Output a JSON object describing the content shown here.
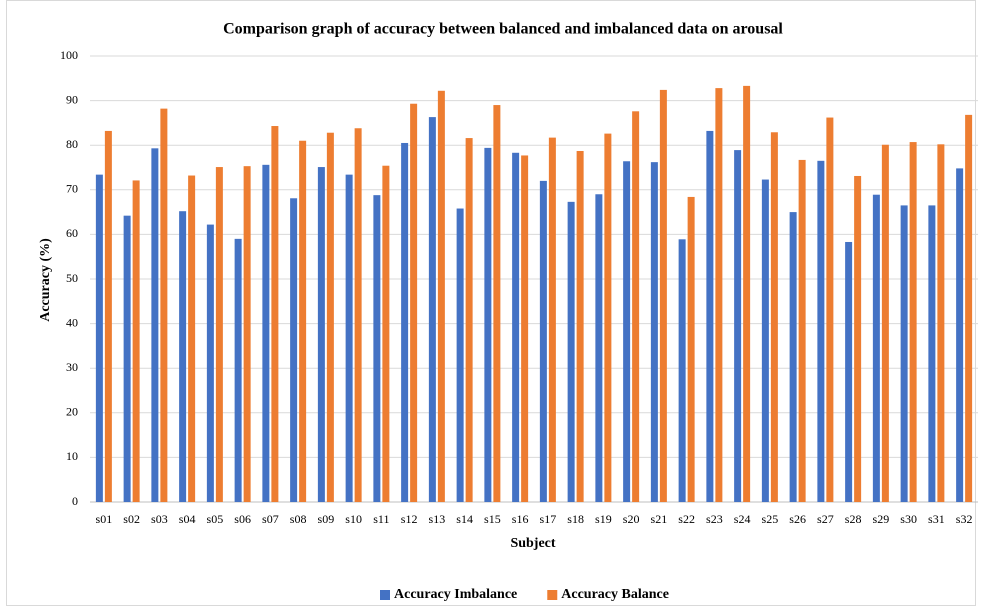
{
  "chart_data": {
    "type": "bar",
    "title": "Comparison graph of accuracy between balanced and imbalanced data on arousal",
    "x_label": "Subject",
    "y_label": "Accuracy (%)",
    "categories": [
      "s01",
      "s02",
      "s03",
      "s04",
      "s05",
      "s06",
      "s07",
      "s08",
      "s09",
      "s10",
      "s11",
      "s12",
      "s13",
      "s14",
      "s15",
      "s16",
      "s17",
      "s18",
      "s19",
      "s20",
      "s21",
      "s22",
      "s23",
      "s24",
      "s25",
      "s26",
      "s27",
      "s28",
      "s29",
      "s30",
      "s31",
      "s32"
    ],
    "series": [
      {
        "name": "Accuracy Imbalance",
        "color": "#4472c4",
        "values": [
          73.4,
          64.2,
          79.3,
          65.2,
          62.2,
          59.0,
          75.6,
          68.1,
          75.1,
          73.4,
          68.8,
          80.5,
          86.3,
          65.8,
          79.4,
          78.3,
          72.0,
          67.3,
          69.0,
          76.4,
          76.2,
          58.9,
          83.2,
          78.9,
          72.3,
          65.0,
          76.5,
          58.3,
          68.9,
          66.5,
          66.5,
          74.8
        ]
      },
      {
        "name": "Accuracy Balance",
        "color": "#ed7d31",
        "values": [
          83.2,
          72.1,
          88.2,
          73.2,
          75.1,
          75.3,
          84.3,
          81.0,
          82.8,
          83.8,
          75.4,
          89.3,
          92.2,
          81.6,
          89.0,
          77.7,
          81.7,
          78.7,
          82.6,
          87.6,
          92.4,
          68.4,
          92.8,
          93.3,
          82.9,
          76.7,
          86.2,
          73.1,
          80.1,
          80.7,
          80.2,
          86.8
        ]
      }
    ],
    "ylim": [
      0,
      100
    ],
    "yticks": [
      0,
      10,
      20,
      30,
      40,
      50,
      60,
      70,
      80,
      90,
      100
    ],
    "grid": true,
    "legend": "bottom"
  }
}
